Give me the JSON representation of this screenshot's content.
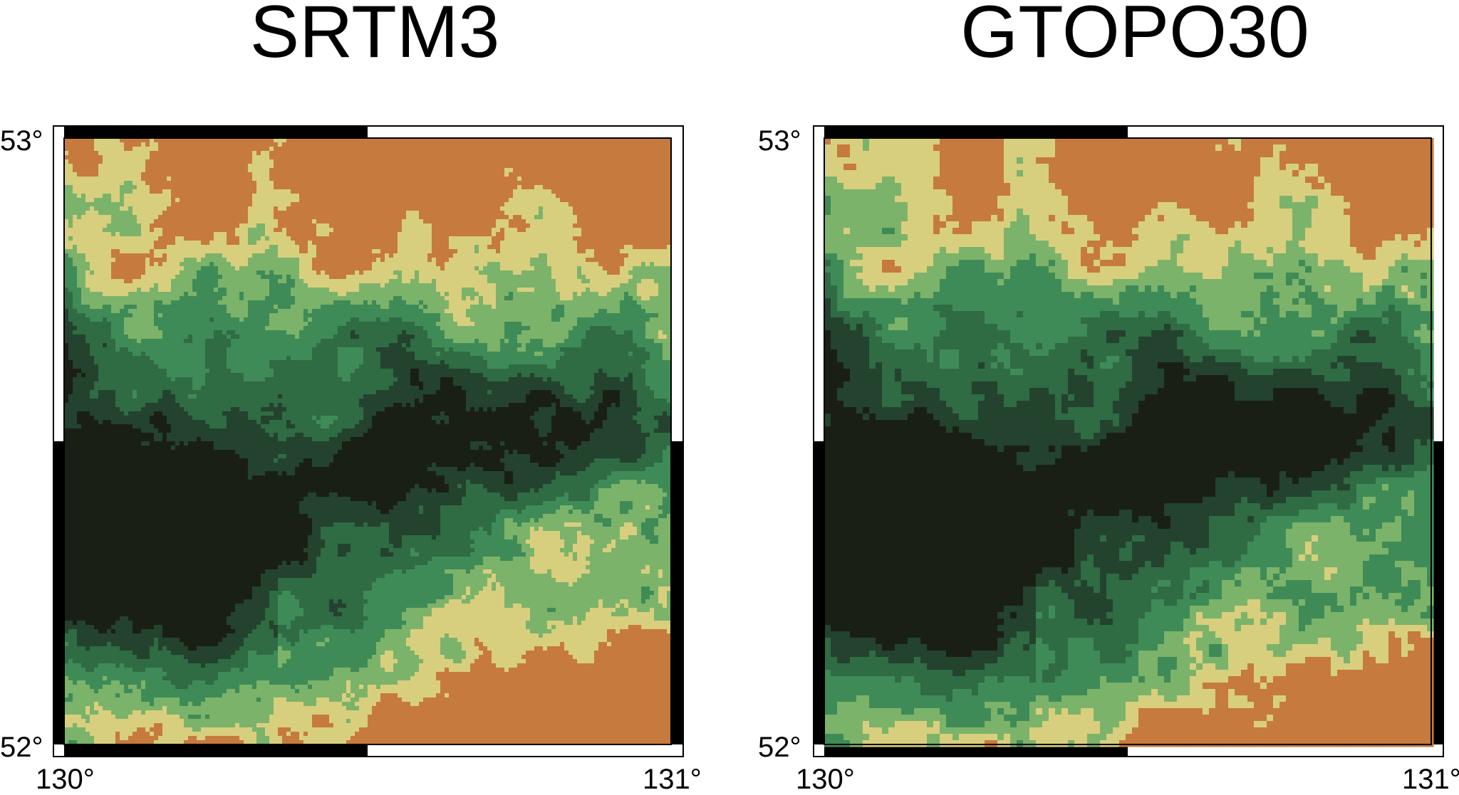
{
  "panels": [
    {
      "title": "SRTM3",
      "lat_top_label": "53°",
      "lat_bottom_label": "52°",
      "lon_left_label": "130°",
      "lon_right_label": "131°",
      "resolution": "fine"
    },
    {
      "title": "GTOPO30",
      "lat_top_label": "53°",
      "lat_bottom_label": "52°",
      "lon_left_label": "130°",
      "lon_right_label": "131°",
      "resolution": "coarse"
    }
  ],
  "colors": {
    "very_low": "#1a1f14",
    "low": "#23432e",
    "mid_low": "#2f6b43",
    "mid": "#3f8b57",
    "mid_high": "#7cb36a",
    "high": "#d8cf7e",
    "very_high": "#c67a3e",
    "frame_black": "#000000",
    "frame_white": "#ffffff"
  }
}
